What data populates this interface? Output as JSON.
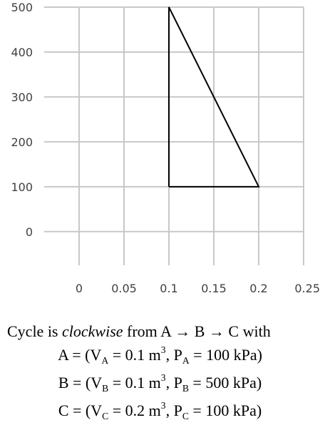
{
  "chart_data": {
    "type": "line",
    "title": "",
    "xlabel": "",
    "ylabel": "",
    "xlim": [
      0,
      0.25
    ],
    "ylim": [
      -75,
      500
    ],
    "grid": true,
    "x_ticks": [
      "0",
      "0.05",
      "0.1",
      "0.15",
      "0.2",
      "0.25"
    ],
    "y_ticks": [
      "0",
      "100",
      "200",
      "300",
      "400",
      "500"
    ],
    "x_tick_values": [
      0,
      0.05,
      0.1,
      0.15,
      0.2,
      0.25
    ],
    "y_tick_values": [
      0,
      100,
      200,
      300,
      400,
      500
    ],
    "series": [
      {
        "x": [
          0.1,
          0.1,
          0.2,
          0.1
        ],
        "y": [
          100,
          500,
          100,
          100
        ],
        "color": "#000000",
        "closed": true
      }
    ],
    "grid_color": "#c8c8c8"
  },
  "caption": {
    "line1_pre": "Cycle is ",
    "line1_italic": "clockwise",
    "line1_post": " from A → B → C with",
    "A": {
      "label": "A",
      "V_sub": "A",
      "V_val": "0.1 m",
      "V_exp": "3",
      "P_sub": "A",
      "P_val": "100 kPa"
    },
    "B": {
      "label": "B",
      "V_sub": "B",
      "V_val": "0.1 m",
      "V_exp": "3",
      "P_sub": "B",
      "P_val": "500 kPa"
    },
    "C": {
      "label": "C",
      "V_sub": "C",
      "V_val": "0.2 m",
      "V_exp": "3",
      "P_sub": "C",
      "P_val": "100 kPa"
    }
  }
}
